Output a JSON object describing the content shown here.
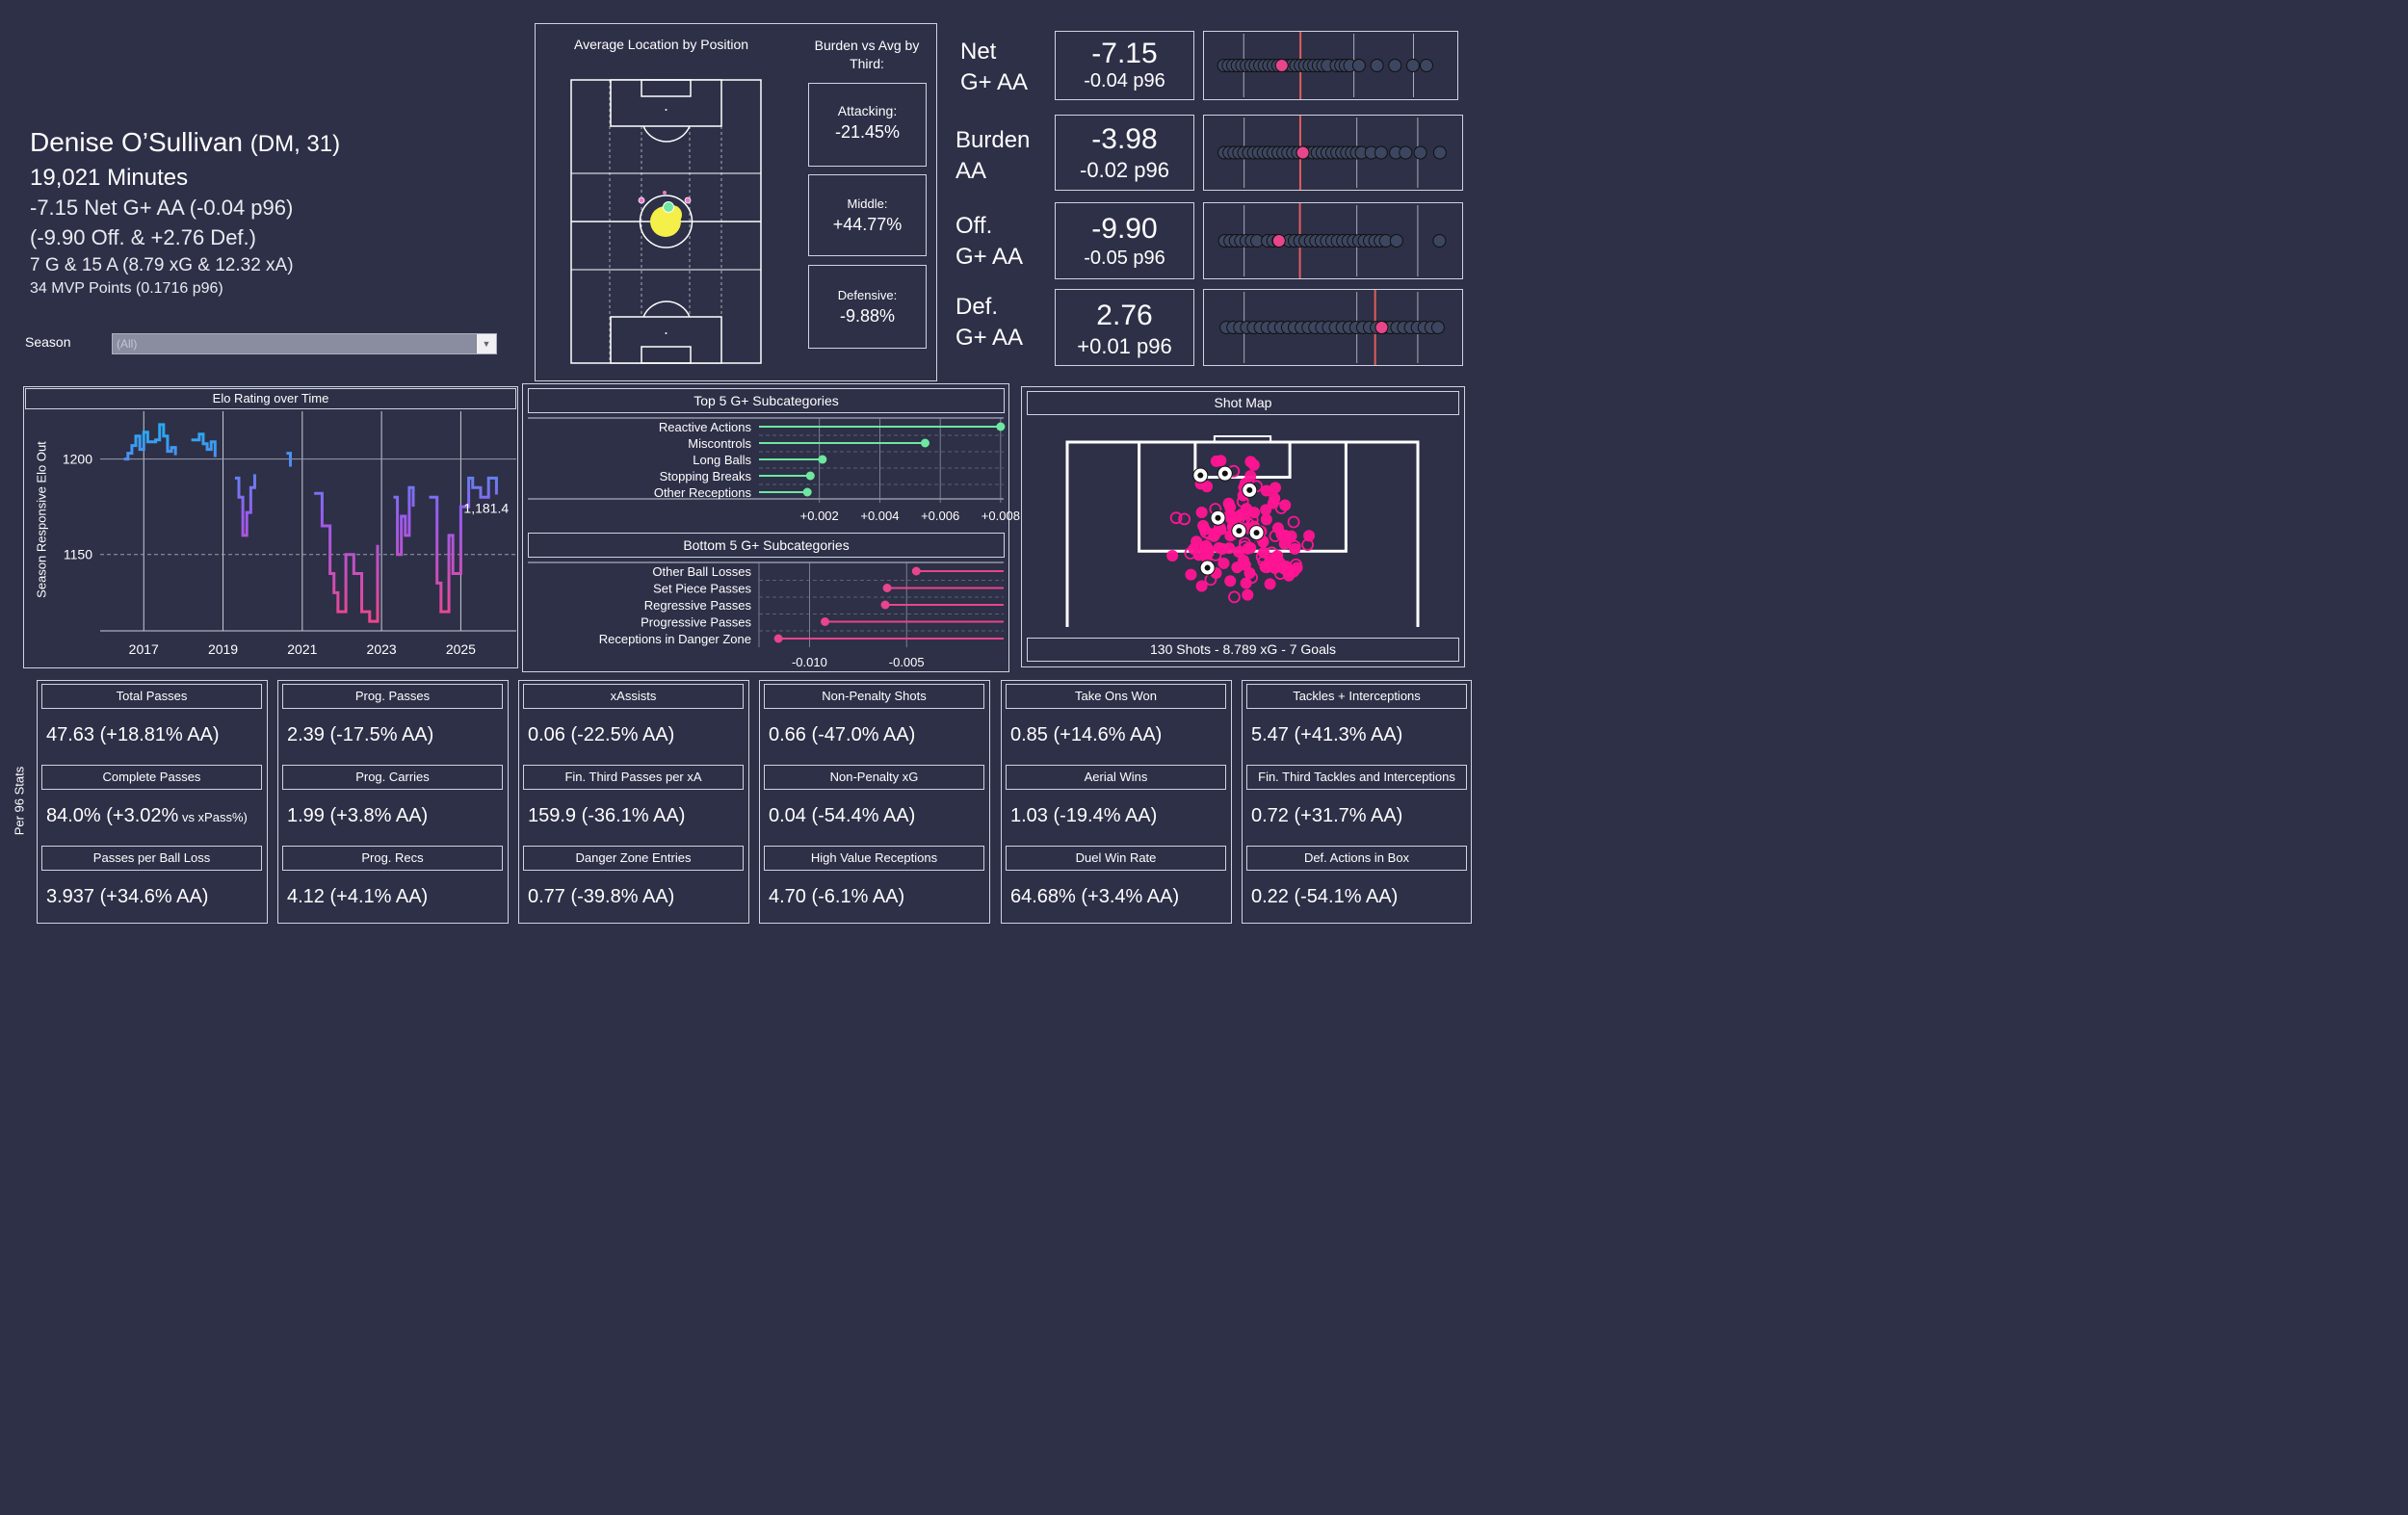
{
  "player": {
    "name": "Denise O’Sullivan",
    "pos_age": "(DM, 31)",
    "minutes": "19,021 Minutes",
    "net_line": "-7.15 Net G+ AA (-0.04 p96)",
    "split_line": "(-9.90 Off. & +2.76 Def.)",
    "goals_line": "7 G & 15 A (8.79 xG & 12.32 xA)",
    "mvp_line": "34 MVP Points (0.1716 p96)"
  },
  "season_filter": {
    "label": "Season",
    "value": "(All)"
  },
  "location": {
    "title": "Average Location by Position",
    "burden_title": "Burden vs Avg by Third:",
    "thirds": [
      {
        "label": "Attacking:",
        "value": "-21.45%"
      },
      {
        "label": "Middle:",
        "value": "+44.77%"
      },
      {
        "label": "Defensive:",
        "value": "-9.88%"
      }
    ]
  },
  "metrics": [
    {
      "name_line1": "Net",
      "name_line2": "G+ AA",
      "value": "-7.15",
      "p96": "-0.04 p96"
    },
    {
      "name_line1": "Burden",
      "name_line2": "AA",
      "value": "-3.98",
      "p96": "-0.02 p96"
    },
    {
      "name_line1": "Off.",
      "name_line2": "G+ AA",
      "value": "-9.90",
      "p96": "-0.05 p96"
    },
    {
      "name_line1": "Def.",
      "name_line2": "G+ AA",
      "value": "2.76",
      "p96": "+0.01 p96"
    }
  ],
  "elo": {
    "title": "Elo Rating over Time",
    "ylabel": "Season Responsive Elo Out",
    "yticks": [
      "1200",
      "1150"
    ],
    "xticks": [
      "2017",
      "2019",
      "2021",
      "2023",
      "2025"
    ],
    "last_label": "1,181.4"
  },
  "top5": {
    "title": "Top 5 G+ Subcategories",
    "ticks": [
      "+0.002",
      "+0.004",
      "+0.006",
      "+0.008"
    ]
  },
  "bottom5": {
    "title": "Bottom 5 G+ Subcategories",
    "ticks": [
      "-0.010",
      "-0.005"
    ]
  },
  "shotmap": {
    "title": "Shot Map",
    "summary": "130 Shots - 8.789 xG - 7 Goals"
  },
  "per96_label": "Per 96 Stats",
  "stat_columns": [
    {
      "stats": [
        {
          "label": "Total Passes",
          "value": "47.63 (+18.81% AA)"
        },
        {
          "label": "Complete Passes",
          "value": "84.0% (+3.02%",
          "suffix": "vs xPass%)"
        },
        {
          "label": "Passes per Ball Loss",
          "value": "3.937 (+34.6% AA)"
        }
      ]
    },
    {
      "stats": [
        {
          "label": "Prog. Passes",
          "value": "2.39 (-17.5% AA)"
        },
        {
          "label": "Prog. Carries",
          "value": "1.99 (+3.8% AA)"
        },
        {
          "label": "Prog. Recs",
          "value": "4.12 (+4.1% AA)"
        }
      ]
    },
    {
      "stats": [
        {
          "label": "xAssists",
          "value": "0.06 (-22.5% AA)"
        },
        {
          "label": "Fin. Third Passes per xA",
          "value": "159.9 (-36.1% AA)"
        },
        {
          "label": "Danger Zone Entries",
          "value": "0.77 (-39.8% AA)"
        }
      ]
    },
    {
      "stats": [
        {
          "label": "Non-Penalty Shots",
          "value": "0.66 (-47.0% AA)"
        },
        {
          "label": "Non-Penalty xG",
          "value": "0.04 (-54.4% AA)"
        },
        {
          "label": "High Value Receptions",
          "value": "4.70 (-6.1% AA)"
        }
      ]
    },
    {
      "stats": [
        {
          "label": "Take Ons Won",
          "value": "0.85 (+14.6% AA)"
        },
        {
          "label": "Aerial Wins",
          "value": "1.03 (-19.4% AA)"
        },
        {
          "label": "Duel Win Rate",
          "value": "64.68% (+3.4% AA)"
        }
      ]
    },
    {
      "stats": [
        {
          "label": "Tackles + Interceptions",
          "value": "5.47 (+41.3% AA)"
        },
        {
          "label": "Fin. Third Tackles and Interceptions",
          "value": "0.72 (+31.7% AA)"
        },
        {
          "label": "Def. Actions in Box",
          "value": "0.22 (-54.1% AA)"
        }
      ]
    }
  ],
  "colors": {
    "bg": "#2d3047",
    "green": "#6ee7a0",
    "pink": "#e8458c",
    "hotpink": "#ff1493",
    "red": "#e25c5c",
    "yellow": "#f5ef4a"
  },
  "chart_data": [
    {
      "type": "line",
      "title": "Elo Rating over Time",
      "xlabel": "",
      "ylabel": "Season Responsive Elo Out",
      "xlim": [
        2015.9,
        2026.4
      ],
      "ylim": [
        1110,
        1225
      ],
      "x": [
        2016.5,
        2016.6,
        2016.7,
        2016.8,
        2016.9,
        2017.0,
        2017.1,
        2017.3,
        2017.4,
        2017.5,
        2017.6,
        2017.7,
        2017.8,
        2018.2,
        2018.4,
        2018.5,
        2018.6,
        2018.7,
        2018.8,
        2019.3,
        2019.4,
        2019.5,
        2019.6,
        2019.7,
        2019.8,
        2020.6,
        2020.7,
        2021.3,
        2021.5,
        2021.7,
        2021.8,
        2021.9,
        2022.1,
        2022.3,
        2022.5,
        2022.7,
        2022.9,
        2023.3,
        2023.4,
        2023.5,
        2023.6,
        2023.7,
        2023.8,
        2024.2,
        2024.4,
        2024.5,
        2024.7,
        2024.8,
        2025.0,
        2025.2,
        2025.3,
        2025.5,
        2025.7,
        2025.9
      ],
      "y": [
        1200,
        1203,
        1207,
        1212,
        1205,
        1214,
        1209,
        1210,
        1218,
        1212,
        1204,
        1206,
        1202,
        1210,
        1213,
        1208,
        1205,
        1209,
        1201,
        1190,
        1180,
        1160,
        1172,
        1185,
        1192,
        1203,
        1196,
        1182,
        1165,
        1140,
        1130,
        1120,
        1150,
        1140,
        1120,
        1115,
        1155,
        1180,
        1150,
        1170,
        1160,
        1185,
        1175,
        1180,
        1135,
        1120,
        1160,
        1140,
        1175,
        1190,
        1185,
        1180,
        1190,
        1181.4
      ],
      "last_value": 1181.4
    },
    {
      "type": "bar",
      "title": "Top 5 G+ Subcategories",
      "categories": [
        "Reactive Actions",
        "Miscontrols",
        "Long Balls",
        "Stopping Breaks",
        "Other Receptions"
      ],
      "values": [
        0.008,
        0.0055,
        0.0021,
        0.0017,
        0.0016
      ],
      "xlim": [
        0,
        0.0081
      ]
    },
    {
      "type": "bar",
      "title": "Bottom 5 G+ Subcategories",
      "categories": [
        "Other Ball Losses",
        "Set Piece Passes",
        "Regressive Passes",
        "Progressive Passes",
        "Receptions in Danger Zone"
      ],
      "values": [
        -0.0045,
        -0.006,
        -0.0061,
        -0.0092,
        -0.0116
      ],
      "xlim": [
        -0.0126,
        0
      ]
    },
    {
      "type": "scatter",
      "title": "Metric distributions",
      "series": [
        {
          "name": "Net G+ AA",
          "values": [
            -20,
            -19,
            -18,
            -17,
            -16,
            -15,
            -14,
            -13,
            -12,
            -11,
            -10,
            -9,
            -8,
            -6,
            -5,
            -4,
            -3,
            -2,
            -1,
            0,
            1,
            2,
            3,
            5,
            6,
            7,
            8,
            10,
            14,
            18,
            22,
            25
          ],
          "highlight": -7.15,
          "ref": -3.0,
          "xlim": [
            -21,
            28
          ]
        },
        {
          "name": "Burden AA",
          "values": [
            -20,
            -19,
            -18,
            -17,
            -16,
            -15,
            -14,
            -13,
            -12,
            -11,
            -10,
            -9,
            -8,
            -7,
            -6,
            -5,
            -4,
            -3,
            -2,
            -1,
            0,
            1,
            2,
            3,
            4,
            5,
            6,
            7,
            8,
            10,
            12,
            15,
            17,
            20,
            24
          ],
          "highlight": -3.98,
          "ref": -4.5,
          "xlim": [
            -21,
            25
          ]
        },
        {
          "name": "Off. G+ AA",
          "values": [
            -20,
            -19,
            -18,
            -17,
            -16,
            -15,
            -14,
            -12,
            -11,
            -10,
            -8,
            -7,
            -6,
            -5,
            -4,
            -3,
            -2,
            -1,
            0,
            1,
            2,
            3,
            4,
            5,
            6,
            7,
            8,
            9,
            10,
            12,
            20
          ],
          "highlight": -9.9,
          "ref": -6.0,
          "xlim": [
            -21,
            21
          ]
        },
        {
          "name": "Def. G+ AA",
          "values": [
            -20,
            -19,
            -18,
            -17,
            -16,
            -15,
            -14,
            -13,
            -12,
            -11,
            -10,
            -9,
            -8,
            -7,
            -6,
            -5,
            -4,
            -3,
            -2,
            -1,
            0,
            1,
            2,
            3,
            4,
            5,
            6,
            7,
            8,
            9,
            10,
            11
          ],
          "highlight": 2.76,
          "ref": 1.8,
          "xlim": [
            -21,
            12
          ]
        }
      ]
    },
    {
      "type": "scatter",
      "title": "Shot Map",
      "x_range": [
        0,
        100
      ],
      "y_range": [
        0,
        100
      ],
      "goals": [
        [
          38,
          18
        ],
        [
          45,
          17
        ],
        [
          52,
          26
        ],
        [
          43,
          41
        ],
        [
          49,
          48
        ],
        [
          54,
          49
        ],
        [
          40,
          68
        ]
      ]
    }
  ]
}
